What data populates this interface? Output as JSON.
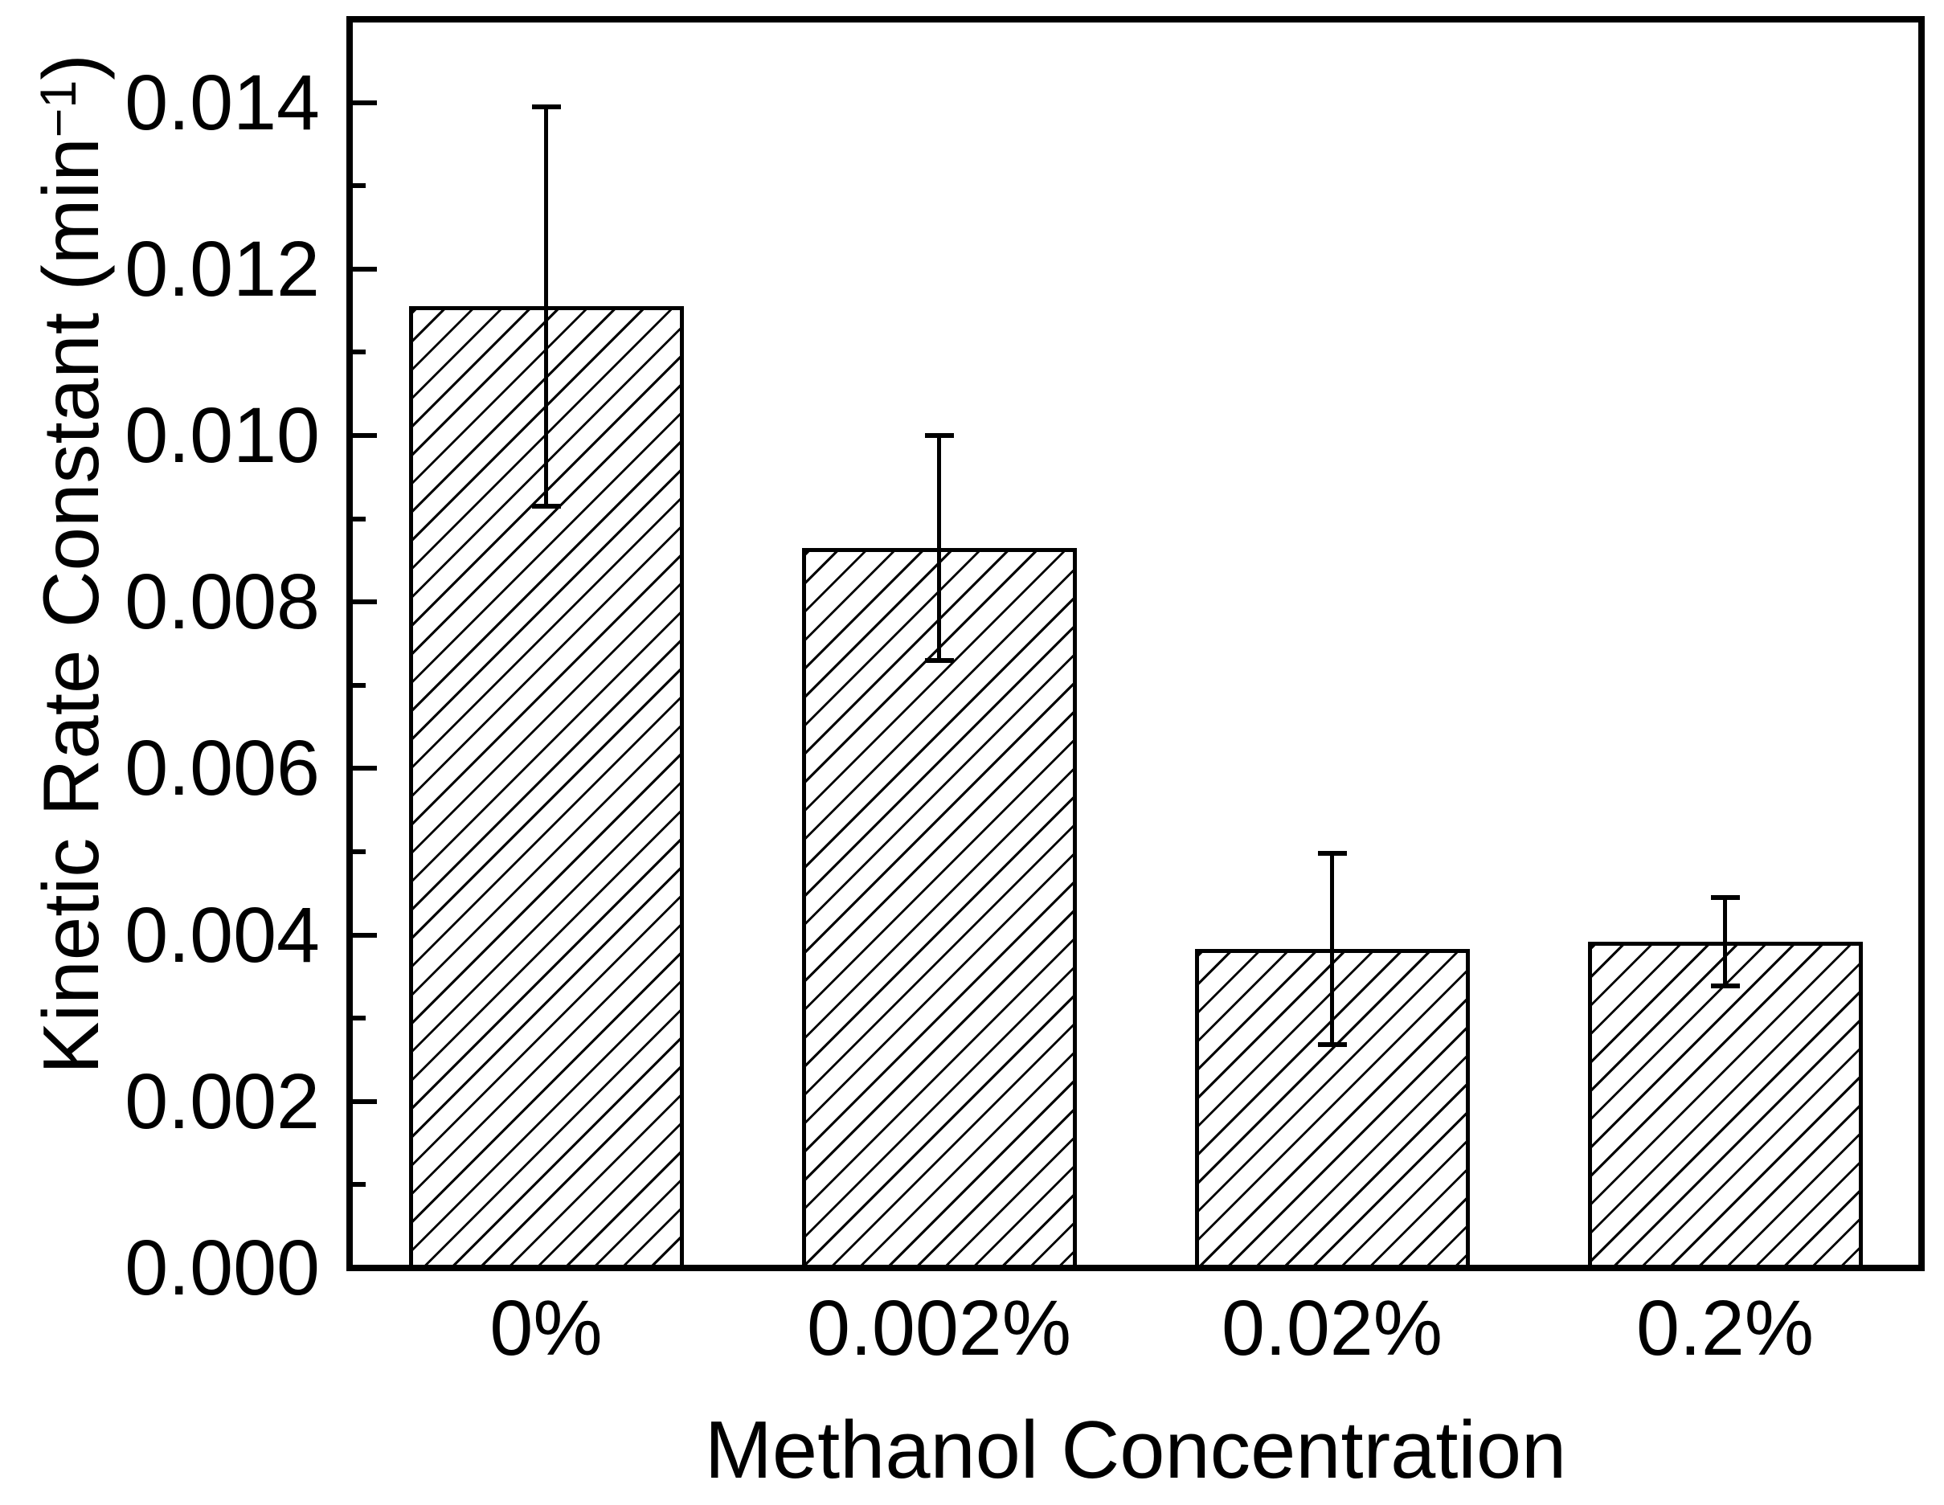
{
  "figure": {
    "background": "#ffffff",
    "foreground": "#000000"
  },
  "chart_data": {
    "type": "bar",
    "title": "",
    "xlabel": "Methanol Concentration",
    "ylabel": "Kinetic Rate Constant (min⁻¹)",
    "ylabel_parts": {
      "base": "Kinetic Rate Constant (min",
      "superscript": "−1",
      "close": ")"
    },
    "categories": [
      "0%",
      "0.002%",
      "0.02%",
      "0.2%"
    ],
    "values": [
      0.01155,
      0.00865,
      0.00383,
      0.00392
    ],
    "error_bars": [
      0.0024,
      0.00135,
      0.00115,
      0.00053
    ],
    "ylim": [
      0,
      0.015
    ],
    "y_major_ticks": [
      {
        "value": 0.0,
        "label": "0.000"
      },
      {
        "value": 0.002,
        "label": "0.002"
      },
      {
        "value": 0.004,
        "label": "0.004"
      },
      {
        "value": 0.006,
        "label": "0.006"
      },
      {
        "value": 0.008,
        "label": "0.008"
      },
      {
        "value": 0.01,
        "label": "0.010"
      },
      {
        "value": 0.012,
        "label": "0.012"
      },
      {
        "value": 0.014,
        "label": "0.014"
      }
    ],
    "y_minor_ticks": [
      0.001,
      0.003,
      0.005,
      0.007,
      0.009,
      0.011,
      0.013
    ],
    "grid": false,
    "legend": null,
    "bar_style": {
      "fill": "#ffffff",
      "hatch": "/",
      "edge_color": "#000000",
      "error_bar_color": "#000000"
    }
  }
}
